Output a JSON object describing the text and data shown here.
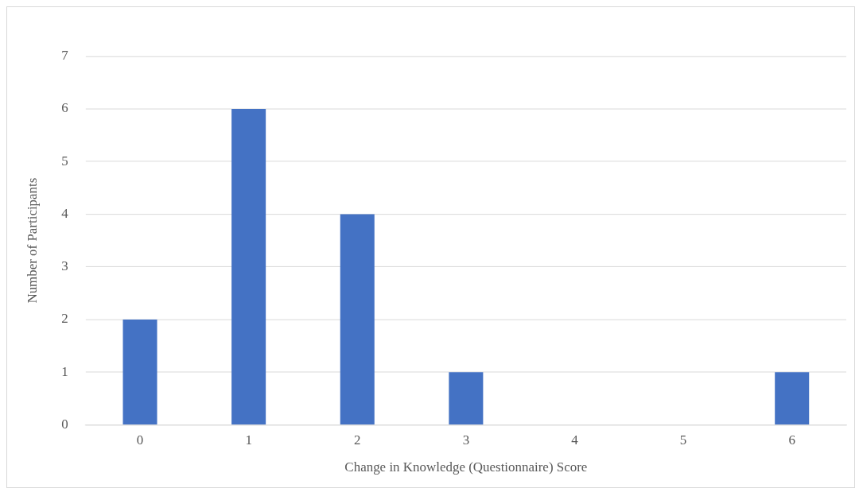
{
  "chart_data": {
    "type": "bar",
    "xlabel": "Change in Knowledge (Questionnaire) Score",
    "ylabel": "Number of Participants",
    "categories": [
      "0",
      "1",
      "2",
      "3",
      "4",
      "5",
      "6"
    ],
    "values": [
      2,
      6,
      4,
      1,
      0,
      0,
      1
    ],
    "color": "#4472c4",
    "ylim": [
      0,
      7
    ],
    "yticks": [
      0,
      1,
      2,
      3,
      4,
      5,
      6,
      7
    ],
    "grid": "y",
    "legend": false
  }
}
